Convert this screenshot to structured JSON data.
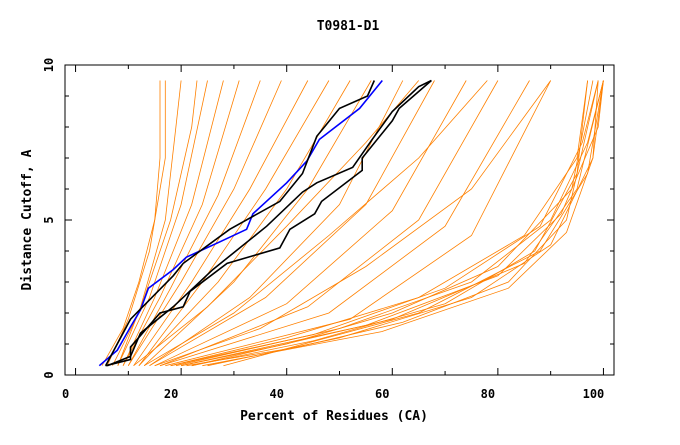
{
  "chart_data": {
    "type": "line",
    "title": "T0981-D1",
    "xlabel": "Percent of Residues (CA)",
    "ylabel": "Distance Cutoff, A",
    "xlim": [
      -2,
      102
    ],
    "ylim": [
      0,
      10
    ],
    "x_ticks": [
      0,
      20,
      40,
      60,
      80,
      100
    ],
    "y_ticks": [
      0,
      5,
      10
    ],
    "grid": false,
    "colors": {
      "background_models": "#ff8000",
      "highlight_blue": "#0000ff",
      "highlight_black": "#000000"
    },
    "background_series": [
      [
        [
          6,
          0.3
        ],
        [
          10,
          1.8
        ],
        [
          14,
          4
        ],
        [
          17,
          7
        ],
        [
          17,
          9.5
        ]
      ],
      [
        [
          7,
          0.3
        ],
        [
          12,
          2
        ],
        [
          17,
          5
        ],
        [
          19,
          8
        ],
        [
          20,
          9.5
        ]
      ],
      [
        [
          8,
          0.3
        ],
        [
          13,
          2.5
        ],
        [
          18,
          5
        ],
        [
          22,
          8
        ],
        [
          23,
          9.5
        ]
      ],
      [
        [
          8,
          0.3
        ],
        [
          14,
          2.5
        ],
        [
          20,
          5.5
        ],
        [
          25,
          9.5
        ]
      ],
      [
        [
          9,
          0.3
        ],
        [
          15,
          2.5
        ],
        [
          22,
          5.5
        ],
        [
          28,
          9.5
        ]
      ],
      [
        [
          9,
          0.3
        ],
        [
          16,
          2.5
        ],
        [
          24,
          5.5
        ],
        [
          31,
          9.5
        ]
      ],
      [
        [
          10,
          0.3
        ],
        [
          18,
          2.8
        ],
        [
          27,
          5.8
        ],
        [
          35,
          9.5
        ]
      ],
      [
        [
          10,
          0.3
        ],
        [
          20,
          3
        ],
        [
          30,
          6
        ],
        [
          39,
          9.5
        ]
      ],
      [
        [
          11,
          0.3
        ],
        [
          22,
          3
        ],
        [
          33,
          6
        ],
        [
          44,
          9.5
        ]
      ],
      [
        [
          12,
          0.3
        ],
        [
          24,
          3
        ],
        [
          36,
          6
        ],
        [
          48,
          9.5
        ]
      ],
      [
        [
          12,
          0.3
        ],
        [
          27,
          3
        ],
        [
          40,
          6
        ],
        [
          52,
          9.5
        ]
      ],
      [
        [
          13,
          0.3
        ],
        [
          30,
          3
        ],
        [
          44,
          6
        ],
        [
          56,
          9.5
        ]
      ],
      [
        [
          14,
          0.3
        ],
        [
          33,
          2.5
        ],
        [
          50,
          5.5
        ],
        [
          62,
          9.5
        ]
      ],
      [
        [
          14,
          0.3
        ],
        [
          36,
          2.5
        ],
        [
          55,
          5.5
        ],
        [
          68,
          9.5
        ]
      ],
      [
        [
          15,
          0.3
        ],
        [
          40,
          2.3
        ],
        [
          60,
          5.3
        ],
        [
          74,
          9.5
        ]
      ],
      [
        [
          16,
          0.3
        ],
        [
          44,
          2.2
        ],
        [
          65,
          5
        ],
        [
          80,
          9.5
        ]
      ],
      [
        [
          16,
          0.3
        ],
        [
          48,
          2
        ],
        [
          70,
          4.8
        ],
        [
          86,
          9.5
        ]
      ],
      [
        [
          17,
          0.3
        ],
        [
          52,
          1.8
        ],
        [
          75,
          4.5
        ],
        [
          90,
          9.5
        ]
      ],
      [
        [
          18,
          0.3
        ],
        [
          40,
          1.2
        ],
        [
          65,
          2.5
        ],
        [
          85,
          4.5
        ],
        [
          95,
          7
        ],
        [
          97,
          9.5
        ]
      ],
      [
        [
          18,
          0.3
        ],
        [
          45,
          1.3
        ],
        [
          70,
          2.8
        ],
        [
          88,
          4.8
        ],
        [
          96,
          7.5
        ],
        [
          99,
          9.5
        ]
      ],
      [
        [
          19,
          0.3
        ],
        [
          50,
          1.5
        ],
        [
          75,
          3
        ],
        [
          90,
          5
        ],
        [
          97,
          7.5
        ],
        [
          100,
          9.5
        ]
      ],
      [
        [
          20,
          0.3
        ],
        [
          40,
          1
        ],
        [
          60,
          2
        ],
        [
          80,
          3.5
        ],
        [
          94,
          6
        ],
        [
          98,
          9.5
        ]
      ],
      [
        [
          20,
          0.3
        ],
        [
          55,
          1.6
        ],
        [
          80,
          3.2
        ],
        [
          92,
          5.2
        ],
        [
          99,
          8
        ],
        [
          100,
          9.5
        ]
      ],
      [
        [
          22,
          0.3
        ],
        [
          45,
          1.1
        ],
        [
          70,
          2.3
        ],
        [
          87,
          4
        ],
        [
          95,
          6.5
        ],
        [
          97,
          9.5
        ]
      ],
      [
        [
          22,
          0.3
        ],
        [
          60,
          1.8
        ],
        [
          85,
          3.6
        ],
        [
          95,
          6
        ],
        [
          100,
          9.5
        ]
      ],
      [
        [
          25,
          0.3
        ],
        [
          50,
          1.2
        ],
        [
          75,
          2.5
        ],
        [
          90,
          4.2
        ],
        [
          98,
          7
        ],
        [
          100,
          9.5
        ]
      ],
      [
        [
          28,
          0.3
        ],
        [
          65,
          2
        ],
        [
          88,
          4
        ],
        [
          97,
          6.5
        ],
        [
          100,
          9.5
        ]
      ],
      [
        [
          15,
          0.3
        ],
        [
          35,
          1.5
        ],
        [
          55,
          3.5
        ],
        [
          75,
          6
        ],
        [
          90,
          9.5
        ]
      ],
      [
        [
          13,
          0.3
        ],
        [
          30,
          2
        ],
        [
          48,
          4.5
        ],
        [
          65,
          7
        ],
        [
          78,
          9.5
        ]
      ],
      [
        [
          11,
          0.3
        ],
        [
          25,
          2.2
        ],
        [
          40,
          4.8
        ],
        [
          55,
          7.5
        ],
        [
          65,
          9.5
        ]
      ],
      [
        [
          5,
          0.3
        ],
        [
          9,
          1.5
        ],
        [
          12,
          3
        ],
        [
          15,
          5
        ],
        [
          16,
          7
        ],
        [
          16,
          9.5
        ]
      ],
      [
        [
          21,
          0.3
        ],
        [
          42,
          0.9
        ],
        [
          62,
          1.7
        ],
        [
          82,
          3
        ],
        [
          93,
          5
        ],
        [
          99,
          9.5
        ]
      ],
      [
        [
          24,
          0.3
        ],
        [
          58,
          1.4
        ],
        [
          82,
          2.8
        ],
        [
          93,
          4.6
        ],
        [
          98,
          7
        ],
        [
          99,
          9.5
        ]
      ]
    ],
    "highlight_series": [
      {
        "color": "#0000ff",
        "points": [
          [
            4.5,
            0.3
          ],
          [
            7.9,
            0.8
          ],
          [
            10.4,
            1.55
          ],
          [
            12.3,
            2.1
          ],
          [
            13.8,
            2.8
          ],
          [
            18.5,
            3.4
          ],
          [
            21,
            3.8
          ],
          [
            27.4,
            4.3
          ],
          [
            32.4,
            4.7
          ],
          [
            33.6,
            5.2
          ],
          [
            40,
            6.2
          ],
          [
            43.8,
            6.9
          ],
          [
            46.2,
            7.6
          ],
          [
            53.8,
            8.6
          ],
          [
            58.1,
            9.5
          ]
        ]
      },
      {
        "color": "#000000",
        "points": [
          [
            5.7,
            0.3
          ],
          [
            10.4,
            1.8
          ],
          [
            18.5,
            3.2
          ],
          [
            20.4,
            3.6
          ],
          [
            29.2,
            4.7
          ],
          [
            38.7,
            5.6
          ],
          [
            43,
            6.5
          ],
          [
            45.7,
            7.7
          ],
          [
            50,
            8.6
          ],
          [
            55.3,
            9.0
          ],
          [
            56.6,
            9.5
          ]
        ]
      },
      {
        "color": "#000000",
        "points": [
          [
            5.7,
            0.3
          ],
          [
            10.4,
            0.5
          ],
          [
            10.4,
            0.9
          ],
          [
            16,
            2.0
          ],
          [
            20.4,
            2.2
          ],
          [
            21.7,
            2.7
          ],
          [
            28.7,
            3.6
          ],
          [
            38.7,
            4.1
          ],
          [
            40.6,
            4.7
          ],
          [
            45.3,
            5.2
          ],
          [
            46.6,
            5.6
          ],
          [
            54.3,
            6.6
          ],
          [
            54.3,
            7.0
          ],
          [
            60,
            8.2
          ],
          [
            61.3,
            8.6
          ],
          [
            67.4,
            9.5
          ]
        ]
      },
      {
        "color": "#000000",
        "points": [
          [
            6,
            0.3
          ],
          [
            10.4,
            0.6
          ],
          [
            12.3,
            1.35
          ],
          [
            18.5,
            2.2
          ],
          [
            26,
            3.4
          ],
          [
            36.2,
            4.8
          ],
          [
            43,
            5.9
          ],
          [
            45.7,
            6.2
          ],
          [
            52.5,
            6.7
          ],
          [
            56.2,
            7.6
          ],
          [
            60,
            8.5
          ],
          [
            65,
            9.3
          ],
          [
            67.4,
            9.5
          ]
        ]
      }
    ]
  }
}
